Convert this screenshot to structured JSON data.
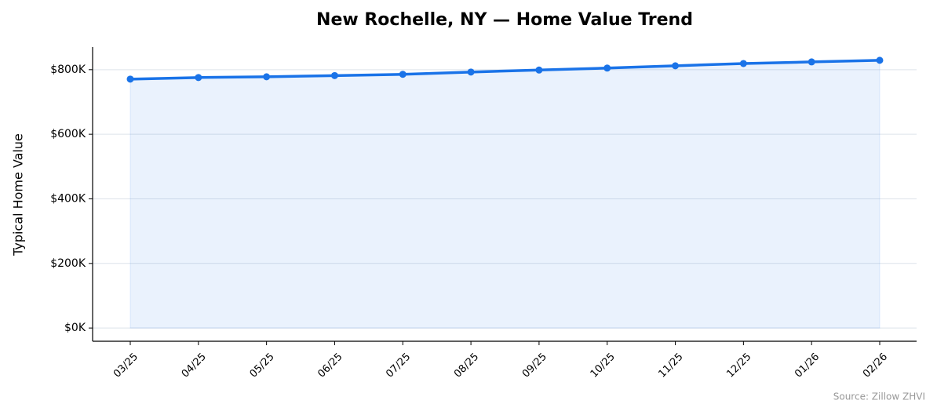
{
  "chart_data": {
    "type": "line",
    "title": "New Rochelle, NY — Home Value Trend",
    "y_label": "Typical Home Value",
    "source": "Source: Zillow ZHVI",
    "categories": [
      "03/25",
      "04/25",
      "05/25",
      "06/25",
      "07/25",
      "08/25",
      "09/25",
      "10/25",
      "11/25",
      "12/25",
      "01/26",
      "02/26"
    ],
    "values": [
      770800,
      775700,
      778000,
      781700,
      785600,
      792700,
      798800,
      805000,
      812000,
      819000,
      824000,
      829000
    ],
    "color": "#1a73e8",
    "area": true,
    "ylim": [
      -41000,
      870000
    ],
    "yticks": [
      {
        "value": 0,
        "label": "$0K"
      },
      {
        "value": 200000,
        "label": "$200K"
      },
      {
        "value": 400000,
        "label": "$400K"
      },
      {
        "value": 600000,
        "label": "$600K"
      },
      {
        "value": 800000,
        "label": "$800K"
      }
    ],
    "grid": true
  }
}
